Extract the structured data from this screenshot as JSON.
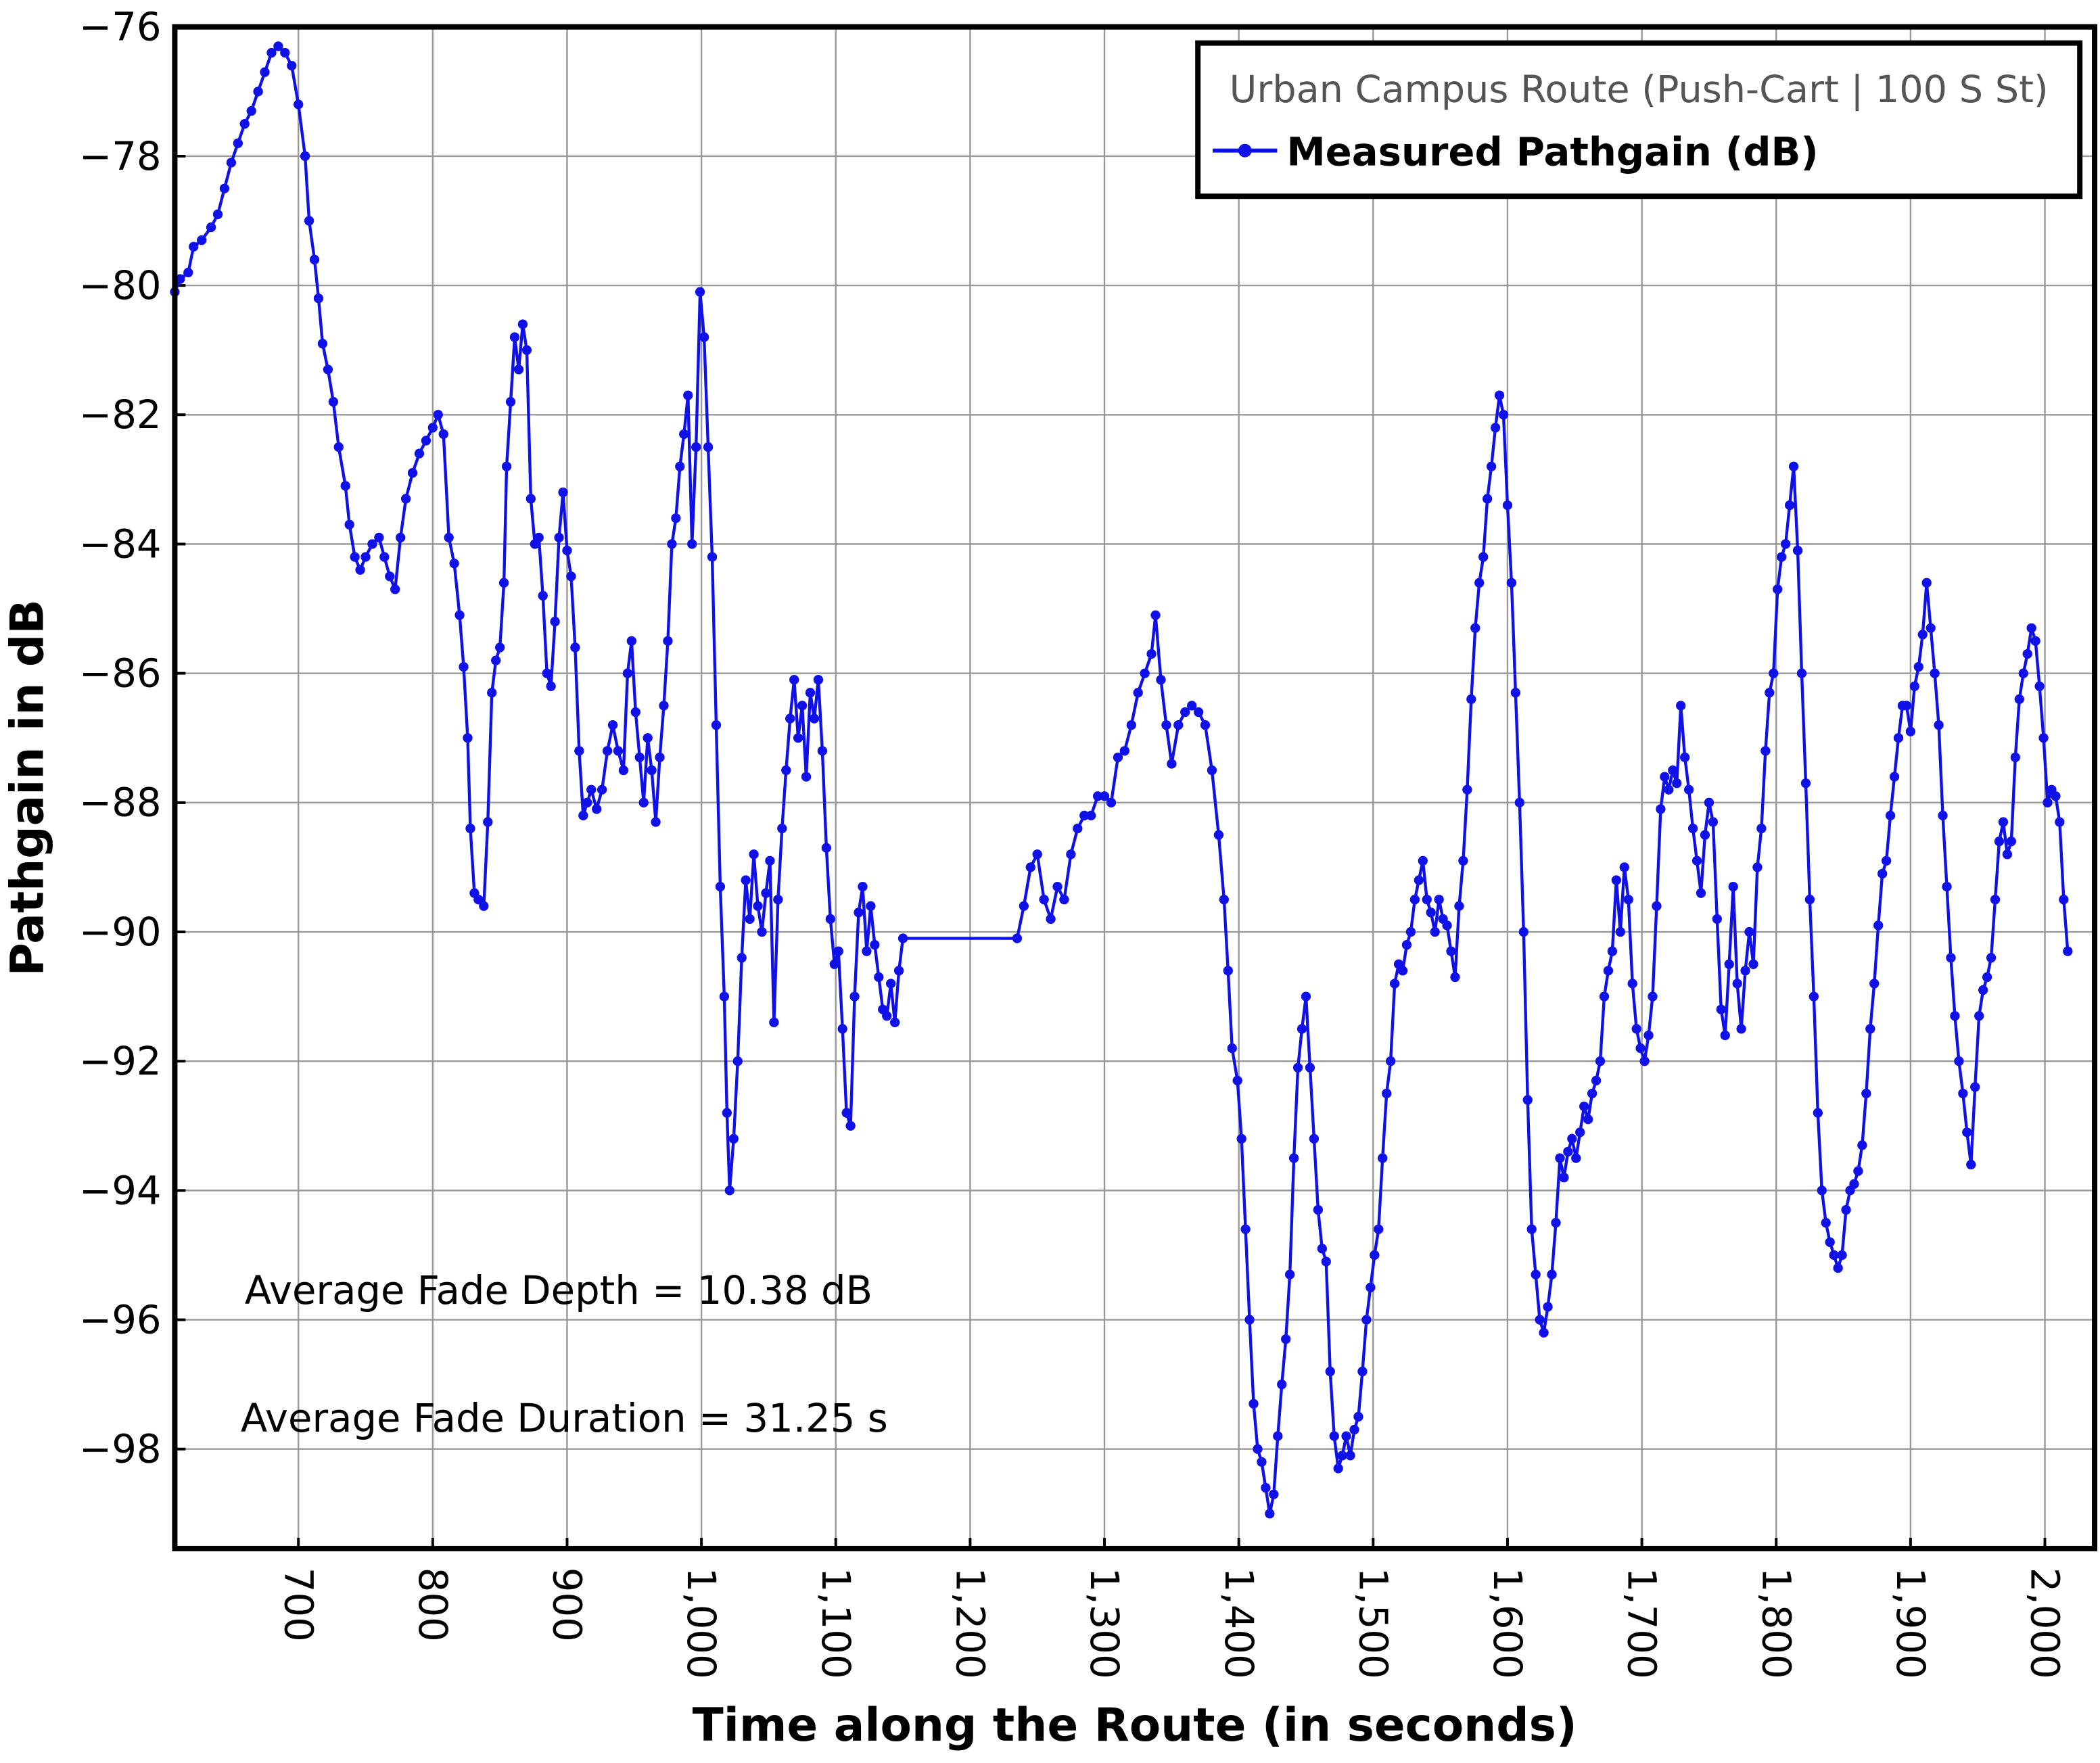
{
  "chart_data": {
    "type": "line",
    "xlabel": "Time along the Route (in seconds)",
    "ylabel": "Pathgain in dB",
    "annotations": [
      "Average Fade Depth = 10.38 dB",
      "Average Fade Duration = 31.25 s"
    ],
    "legend_title": "Urban Campus Route (Push-Cart | 100 S St)",
    "legend_loc": "upper right",
    "grid": true,
    "xlim": [
      608,
      2037
    ],
    "ylim": [
      -99.54,
      -76
    ],
    "xticks": [
      700,
      800,
      900,
      {
        "value": 1000,
        "label": "1,000"
      },
      {
        "value": 1100,
        "label": "1,100"
      },
      {
        "value": 1200,
        "label": "1,200"
      },
      {
        "value": 1300,
        "label": "1,300"
      },
      {
        "value": 1400,
        "label": "1,400"
      },
      {
        "value": 1500,
        "label": "1,500"
      },
      {
        "value": 1600,
        "label": "1,600"
      },
      {
        "value": 1700,
        "label": "1,700"
      },
      {
        "value": 1800,
        "label": "1,800"
      },
      {
        "value": 1900,
        "label": "1,900"
      },
      {
        "value": 2000,
        "label": "2,000"
      }
    ],
    "yticks": [
      {
        "value": -76,
        "label": "−76"
      },
      {
        "value": -78,
        "label": "−78"
      },
      {
        "value": -80,
        "label": "−80"
      },
      {
        "value": -82,
        "label": "−82"
      },
      {
        "value": -84,
        "label": "−84"
      },
      {
        "value": -86,
        "label": "−86"
      },
      {
        "value": -88,
        "label": "−88"
      },
      {
        "value": -90,
        "label": "−90"
      },
      {
        "value": -92,
        "label": "−92"
      },
      {
        "value": -94,
        "label": "−94"
      },
      {
        "value": -96,
        "label": "−96"
      },
      {
        "value": -98,
        "label": "−98"
      }
    ],
    "x": [
      608,
      612,
      618,
      622,
      628,
      635,
      640,
      645,
      650,
      655,
      660,
      665,
      670,
      675,
      680,
      685,
      690,
      695,
      700,
      705,
      708,
      712,
      715,
      718,
      722,
      726,
      730,
      735,
      738,
      742,
      746,
      750,
      755,
      760,
      764,
      768,
      772,
      776,
      780,
      785,
      790,
      795,
      800,
      804,
      808,
      812,
      816,
      820,
      823,
      826,
      828,
      831,
      834,
      838,
      841,
      844,
      847,
      850,
      853,
      855,
      858,
      861,
      864,
      867,
      870,
      873,
      876,
      879,
      882,
      885,
      888,
      891,
      894,
      897,
      900,
      903,
      906,
      909,
      912,
      915,
      918,
      922,
      926,
      930,
      934,
      938,
      942,
      945,
      948,
      951,
      954,
      957,
      960,
      963,
      966,
      969,
      972,
      975,
      978,
      981,
      984,
      987,
      990,
      993,
      996,
      999,
      1002,
      1005,
      1008,
      1011,
      1014,
      1017,
      1019,
      1021,
      1024,
      1027,
      1030,
      1033,
      1036,
      1039,
      1042,
      1045,
      1048,
      1051,
      1054,
      1057,
      1060,
      1063,
      1066,
      1069,
      1072,
      1075,
      1078,
      1081,
      1084,
      1087,
      1090,
      1093,
      1096,
      1099,
      1102,
      1105,
      1108,
      1111,
      1114,
      1117,
      1120,
      1123,
      1126,
      1129,
      1132,
      1135,
      1138,
      1141,
      1144,
      1147,
      1150,
      1235,
      1240,
      1245,
      1250,
      1255,
      1260,
      1265,
      1270,
      1275,
      1280,
      1285,
      1290,
      1295,
      1300,
      1305,
      1310,
      1315,
      1320,
      1325,
      1330,
      1335,
      1338,
      1342,
      1346,
      1350,
      1355,
      1360,
      1365,
      1370,
      1375,
      1380,
      1385,
      1389,
      1392,
      1395,
      1399,
      1402,
      1405,
      1408,
      1411,
      1414,
      1417,
      1420,
      1423,
      1426,
      1429,
      1432,
      1435,
      1438,
      1441,
      1444,
      1447,
      1450,
      1453,
      1456,
      1459,
      1462,
      1465,
      1468,
      1471,
      1474,
      1477,
      1480,
      1483,
      1486,
      1489,
      1492,
      1495,
      1498,
      1501,
      1504,
      1507,
      1510,
      1513,
      1516,
      1519,
      1522,
      1525,
      1528,
      1531,
      1534,
      1537,
      1540,
      1543,
      1546,
      1549,
      1552,
      1555,
      1558,
      1561,
      1564,
      1567,
      1570,
      1573,
      1576,
      1579,
      1582,
      1585,
      1588,
      1591,
      1594,
      1597,
      1600,
      1603,
      1606,
      1609,
      1612,
      1615,
      1618,
      1621,
      1624,
      1627,
      1630,
      1633,
      1636,
      1639,
      1642,
      1645,
      1648,
      1651,
      1654,
      1657,
      1660,
      1663,
      1666,
      1669,
      1672,
      1675,
      1678,
      1681,
      1684,
      1687,
      1690,
      1693,
      1696,
      1699,
      1702,
      1705,
      1708,
      1711,
      1714,
      1717,
      1720,
      1723,
      1726,
      1729,
      1732,
      1735,
      1738,
      1741,
      1744,
      1747,
      1750,
      1753,
      1756,
      1759,
      1762,
      1765,
      1768,
      1771,
      1774,
      1777,
      1780,
      1783,
      1786,
      1789,
      1792,
      1795,
      1798,
      1801,
      1804,
      1807,
      1810,
      1813,
      1816,
      1819,
      1822,
      1825,
      1828,
      1831,
      1834,
      1837,
      1840,
      1843,
      1846,
      1849,
      1852,
      1855,
      1858,
      1861,
      1864,
      1867,
      1870,
      1873,
      1876,
      1879,
      1882,
      1885,
      1888,
      1891,
      1894,
      1897,
      1900,
      1903,
      1906,
      1909,
      1912,
      1915,
      1918,
      1921,
      1924,
      1927,
      1930,
      1933,
      1936,
      1939,
      1942,
      1945,
      1948,
      1951,
      1954,
      1957,
      1960,
      1963,
      1966,
      1969,
      1972,
      1975,
      1978,
      1981,
      1984,
      1987,
      1990,
      1993,
      1996,
      1999,
      2002,
      2005,
      2008,
      2011,
      2014,
      2017
    ],
    "series": [
      {
        "name": "Measured Pathgain (dB)",
        "color": "#1010e8",
        "values": [
          -80.1,
          -79.9,
          -79.8,
          -79.4,
          -79.3,
          -79.1,
          -78.9,
          -78.5,
          -78.1,
          -77.8,
          -77.5,
          -77.3,
          -77.0,
          -76.7,
          -76.4,
          -76.3,
          -76.4,
          -76.6,
          -77.2,
          -78.0,
          -79.0,
          -79.6,
          -80.2,
          -80.9,
          -81.3,
          -81.8,
          -82.5,
          -83.1,
          -83.7,
          -84.2,
          -84.4,
          -84.2,
          -84.0,
          -83.9,
          -84.2,
          -84.5,
          -84.7,
          -83.9,
          -83.3,
          -82.9,
          -82.6,
          -82.4,
          -82.2,
          -82.0,
          -82.3,
          -83.9,
          -84.3,
          -85.1,
          -85.9,
          -87.0,
          -88.4,
          -89.4,
          -89.5,
          -89.6,
          -88.3,
          -86.3,
          -85.8,
          -85.6,
          -84.6,
          -82.8,
          -81.8,
          -80.8,
          -81.3,
          -80.6,
          -81.0,
          -83.3,
          -84.0,
          -83.9,
          -84.8,
          -86.0,
          -86.2,
          -85.2,
          -83.9,
          -83.2,
          -84.1,
          -84.5,
          -85.6,
          -87.2,
          -88.2,
          -88.0,
          -87.8,
          -88.1,
          -87.8,
          -87.2,
          -86.8,
          -87.2,
          -87.5,
          -86.0,
          -85.5,
          -86.6,
          -87.3,
          -88.0,
          -87.0,
          -87.5,
          -88.3,
          -87.3,
          -86.5,
          -85.5,
          -84.0,
          -83.6,
          -82.8,
          -82.3,
          -81.7,
          -84.0,
          -82.5,
          -80.1,
          -80.8,
          -82.5,
          -84.2,
          -86.8,
          -89.3,
          -91.0,
          -92.8,
          -94.0,
          -93.2,
          -92.0,
          -90.4,
          -89.2,
          -89.8,
          -88.8,
          -89.6,
          -90.0,
          -89.4,
          -88.9,
          -91.4,
          -89.5,
          -88.4,
          -87.5,
          -86.7,
          -86.1,
          -87.0,
          -86.5,
          -87.6,
          -86.3,
          -86.7,
          -86.1,
          -87.2,
          -88.7,
          -89.8,
          -90.5,
          -90.3,
          -91.5,
          -92.8,
          -93.0,
          -91.0,
          -89.7,
          -89.3,
          -90.3,
          -89.6,
          -90.2,
          -90.7,
          -91.2,
          -91.3,
          -90.8,
          -91.4,
          -90.6,
          -90.1,
          -90.1,
          -89.6,
          -89.0,
          -88.8,
          -89.5,
          -89.8,
          -89.3,
          -89.5,
          -88.8,
          -88.4,
          -88.2,
          -88.2,
          -87.9,
          -87.9,
          -88.0,
          -87.3,
          -87.2,
          -86.8,
          -86.3,
          -86.0,
          -85.7,
          -85.1,
          -86.1,
          -86.8,
          -87.4,
          -86.8,
          -86.6,
          -86.5,
          -86.6,
          -86.8,
          -87.5,
          -88.5,
          -89.5,
          -90.6,
          -91.8,
          -92.3,
          -93.2,
          -94.6,
          -96.0,
          -97.3,
          -98.0,
          -98.2,
          -98.6,
          -99.0,
          -98.7,
          -97.8,
          -97.0,
          -96.3,
          -95.3,
          -93.5,
          -92.1,
          -91.5,
          -91.0,
          -92.1,
          -93.2,
          -94.3,
          -94.9,
          -95.1,
          -96.8,
          -97.8,
          -98.3,
          -98.1,
          -97.8,
          -98.1,
          -97.7,
          -97.5,
          -96.8,
          -96.0,
          -95.5,
          -95.0,
          -94.6,
          -93.5,
          -92.5,
          -92.0,
          -90.8,
          -90.5,
          -90.6,
          -90.2,
          -90.0,
          -89.5,
          -89.2,
          -88.9,
          -89.5,
          -89.7,
          -90.0,
          -89.5,
          -89.8,
          -89.9,
          -90.3,
          -90.7,
          -89.6,
          -88.9,
          -87.8,
          -86.4,
          -85.3,
          -84.6,
          -84.2,
          -83.3,
          -82.8,
          -82.2,
          -81.7,
          -82.0,
          -83.4,
          -84.6,
          -86.3,
          -88.0,
          -90.0,
          -92.6,
          -94.6,
          -95.3,
          -96.0,
          -96.2,
          -95.8,
          -95.3,
          -94.5,
          -93.5,
          -93.8,
          -93.4,
          -93.2,
          -93.5,
          -93.1,
          -92.7,
          -92.9,
          -92.5,
          -92.3,
          -92.0,
          -91.0,
          -90.6,
          -90.3,
          -89.2,
          -90.0,
          -89.0,
          -89.5,
          -90.8,
          -91.5,
          -91.8,
          -92.0,
          -91.6,
          -91.0,
          -89.6,
          -88.1,
          -87.6,
          -87.8,
          -87.5,
          -87.7,
          -86.5,
          -87.3,
          -87.8,
          -88.4,
          -88.9,
          -89.4,
          -88.5,
          -88.0,
          -88.3,
          -89.8,
          -91.2,
          -91.6,
          -90.5,
          -89.3,
          -90.8,
          -91.5,
          -90.6,
          -90.0,
          -90.5,
          -89.0,
          -88.4,
          -87.2,
          -86.3,
          -86.0,
          -84.7,
          -84.2,
          -84.0,
          -83.4,
          -82.8,
          -84.1,
          -86.0,
          -87.7,
          -89.5,
          -91.0,
          -92.8,
          -94.0,
          -94.5,
          -94.8,
          -95.0,
          -95.2,
          -95.0,
          -94.3,
          -94.0,
          -93.9,
          -93.7,
          -93.3,
          -92.5,
          -91.5,
          -90.8,
          -89.9,
          -89.1,
          -88.9,
          -88.2,
          -87.6,
          -87.0,
          -86.5,
          -86.5,
          -86.9,
          -86.2,
          -85.9,
          -85.4,
          -84.6,
          -85.3,
          -86.0,
          -86.8,
          -88.2,
          -89.3,
          -90.4,
          -91.3,
          -92.0,
          -92.5,
          -93.1,
          -93.6,
          -92.4,
          -91.3,
          -90.9,
          -90.7,
          -90.4,
          -89.5,
          -88.6,
          -88.3,
          -88.8,
          -88.6,
          -87.3,
          -86.4,
          -86.0,
          -85.7,
          -85.3,
          -85.5,
          -86.2,
          -87.0,
          -88.0,
          -87.8,
          -87.9,
          -88.3,
          -89.5,
          -90.3
        ]
      }
    ]
  }
}
